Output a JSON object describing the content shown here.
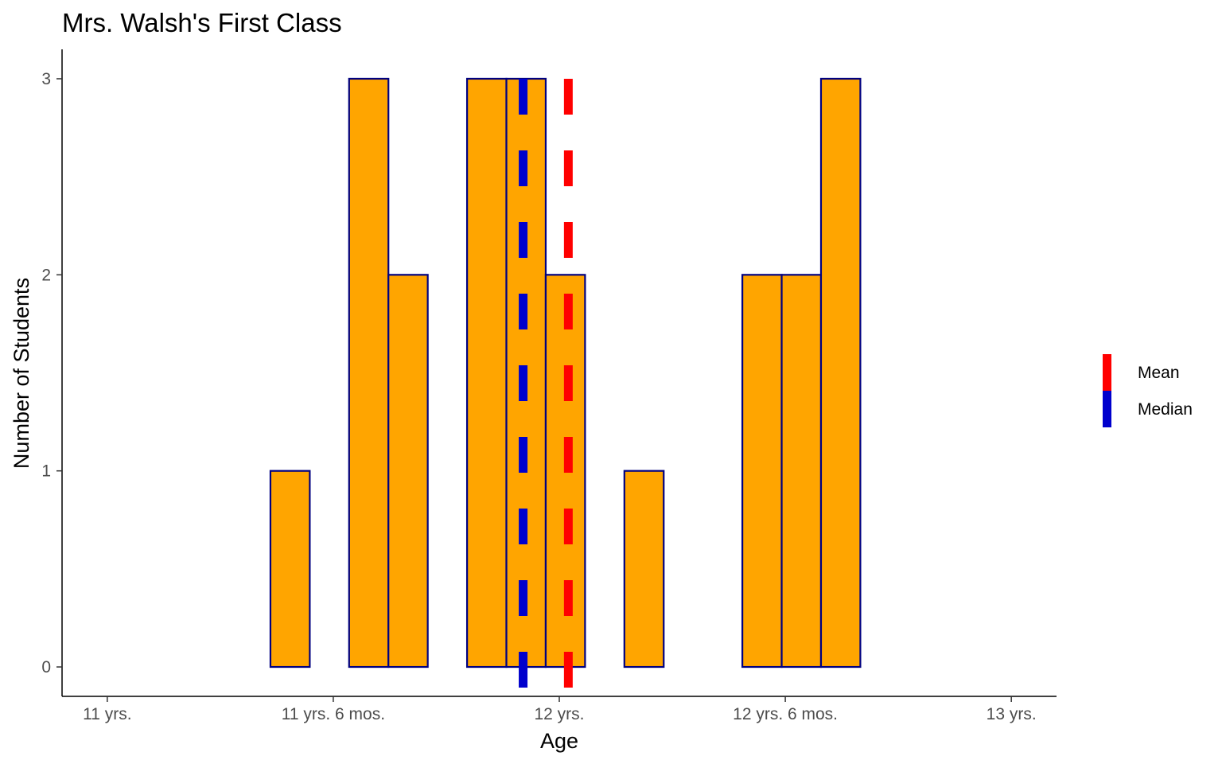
{
  "chart_data": {
    "type": "bar",
    "title": "Mrs. Walsh's First Class",
    "xlabel": "Age",
    "ylabel": "Number of Students",
    "x_unit": "years",
    "x_ticks": [
      {
        "value": 11.0,
        "label": "11 yrs."
      },
      {
        "value": 11.5,
        "label": "11 yrs. 6 mos."
      },
      {
        "value": 12.0,
        "label": "12 yrs."
      },
      {
        "value": 12.5,
        "label": "12 yrs. 6 mos."
      },
      {
        "value": 13.0,
        "label": "13 yrs."
      }
    ],
    "y_ticks": [
      0,
      1,
      2,
      3
    ],
    "xlim": [
      10.9,
      13.1
    ],
    "ylim": [
      -0.15,
      3.15
    ],
    "bin_start": 11.1,
    "bin_width": 0.087,
    "counts": [
      0,
      0,
      0,
      1,
      0,
      3,
      2,
      0,
      3,
      3,
      2,
      0,
      1,
      0,
      0,
      2,
      2,
      3,
      0,
      0,
      0,
      0
    ],
    "bar_fill": "#ffa500",
    "bar_outline": "#000080",
    "lines": [
      {
        "name": "Mean",
        "value": 12.02,
        "color": "#ff0000"
      },
      {
        "name": "Median",
        "value": 11.92,
        "color": "#0000cd"
      }
    ],
    "legend_position": "right",
    "grid": false
  }
}
